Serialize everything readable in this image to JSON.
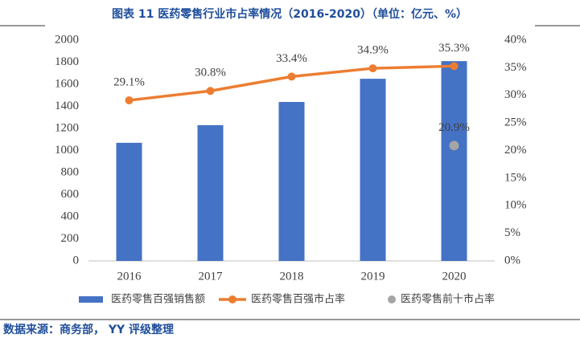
{
  "chart_data": {
    "type": "bar-line",
    "title": "图表 11 医药零售行业市占率情况（2016-2020）（单位：亿元、%）",
    "source": "数据来源：商务部， YY 评级整理",
    "categories": [
      "2016",
      "2017",
      "2018",
      "2019",
      "2020"
    ],
    "series": [
      {
        "name": "医药零售百强销售额",
        "type": "bar",
        "color": "#4472c4",
        "values": [
          1070,
          1230,
          1440,
          1650,
          1810
        ]
      },
      {
        "name": "医药零售百强市占率",
        "type": "line",
        "axis": "y2",
        "color": "#ed7d31",
        "values": [
          29.1,
          30.8,
          33.4,
          34.9,
          35.3
        ],
        "value_labels": [
          "29.1%",
          "30.8%",
          "33.4%",
          "34.9%",
          "35.3%"
        ]
      },
      {
        "name": "医药零售前十市占率",
        "type": "scatter",
        "axis": "y2",
        "color": "#a5a5a5",
        "values": [
          null,
          null,
          null,
          null,
          20.9
        ],
        "value_labels": [
          null,
          null,
          null,
          null,
          "20.9%"
        ]
      }
    ],
    "ylim": [
      0,
      2000
    ],
    "yticks": [
      0,
      200,
      400,
      600,
      800,
      1000,
      1200,
      1400,
      1600,
      1800,
      2000
    ],
    "y2lim": [
      0,
      40
    ],
    "y2ticks": [
      {
        "value": 0,
        "label": "0%"
      },
      {
        "value": 5,
        "label": "5%"
      },
      {
        "value": 10,
        "label": "10%"
      },
      {
        "value": 15,
        "label": "15%"
      },
      {
        "value": 20,
        "label": "20%"
      },
      {
        "value": 25,
        "label": "25%"
      },
      {
        "value": 30,
        "label": "30%"
      },
      {
        "value": 35,
        "label": "35%"
      },
      {
        "value": 40,
        "label": "40%"
      }
    ],
    "grid": false,
    "legend": "bottom"
  }
}
